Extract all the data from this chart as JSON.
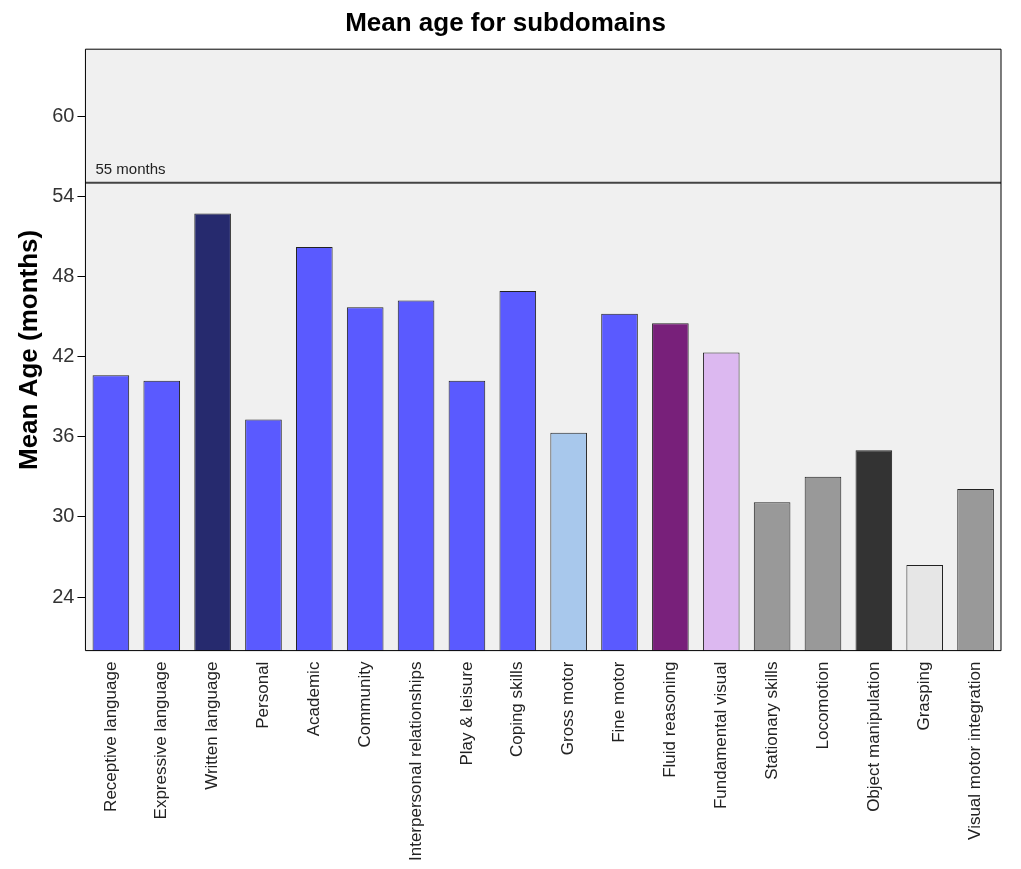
{
  "chart_data": {
    "type": "bar",
    "title": "Mean age for subdomains",
    "ylabel": "Mean Age (months)",
    "categories": [
      "Receptive language",
      "Expressive language",
      "Written language",
      "Personal",
      "Academic",
      "Community",
      "Interpersonal relationships",
      "Play & leisure",
      "Coping skills",
      "Gross motor",
      "Fine motor",
      "Fluid reasoning",
      "Fundamental visual",
      "Stationary skills",
      "Locomotion",
      "Object manipulation",
      "Grasping",
      "Visual motor integration"
    ],
    "values": [
      40.6,
      40.2,
      52.7,
      37.3,
      50.2,
      45.7,
      46.2,
      40.2,
      46.9,
      36.3,
      45.2,
      44.5,
      42.3,
      31.1,
      33.0,
      35.0,
      26.4,
      32.1
    ],
    "colors": [
      "#5a5aff",
      "#5a5aff",
      "#262a6e",
      "#5a5aff",
      "#5a5aff",
      "#5a5aff",
      "#5a5aff",
      "#5a5aff",
      "#5a5aff",
      "#a8c8ec",
      "#5a5aff",
      "#78207a",
      "#dcb8f0",
      "#999999",
      "#999999",
      "#333333",
      "#e6e6e6",
      "#999999"
    ],
    "ylim": [
      20,
      65
    ],
    "yticks": [
      24,
      30,
      36,
      42,
      48,
      54,
      60
    ],
    "grid": false,
    "legend": false,
    "ref_lines": [
      {
        "axis": "y",
        "value": 55,
        "label": "55 months",
        "color": "#444444"
      }
    ]
  }
}
